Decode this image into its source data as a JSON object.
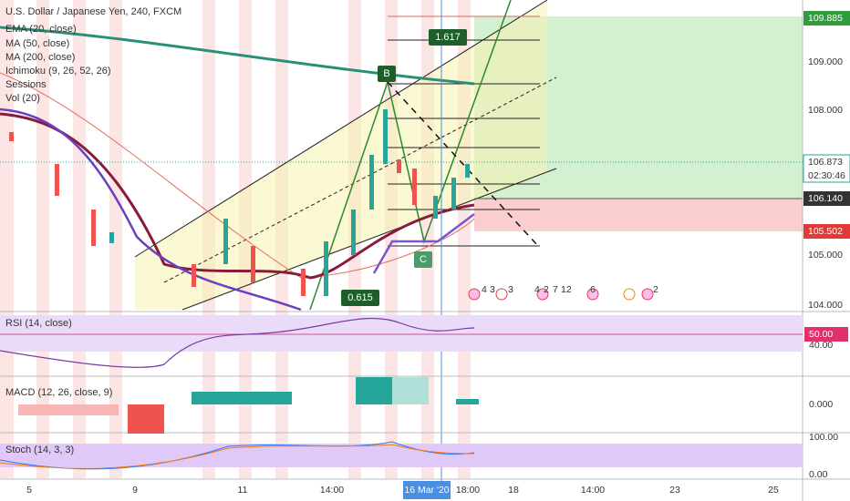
{
  "header": {
    "title": "U.S. Dollar / Japanese Yen, 240, FXCM"
  },
  "indicators": [
    "EMA (20, close)",
    "MA (50, close)",
    "MA (200, close)",
    "Ichimoku (9, 26, 52, 26)",
    "Sessions",
    "Vol (20)"
  ],
  "price_axis": {
    "target": "109.885",
    "p109": "109.000",
    "p108": "108.000",
    "last": "106.873",
    "countdown": "02:30:46",
    "entry": "106.140",
    "stop": "105.502",
    "p105": "105.000",
    "p104": "104.000"
  },
  "drawing": {
    "fib_top": "1.617",
    "fib_bottom": "0.615",
    "point_b": "B",
    "point_c": "C"
  },
  "events": [
    "4",
    "3",
    "3",
    "4",
    "2",
    "7",
    "12",
    "6",
    "2"
  ],
  "rsi": {
    "label": "RSI (14, close)",
    "level": "50.00",
    "axis": "40.00"
  },
  "macd": {
    "label": "MACD (12, 26, close, 9)",
    "axis": "0.000"
  },
  "stoch": {
    "label": "Stoch (14, 3, 3)",
    "top": "100.00",
    "bottom": "0.00"
  },
  "time_axis": [
    "5",
    "9",
    "11",
    "14:00",
    "16 Mar '20",
    "18:00",
    "18",
    "14:00",
    "23",
    "25"
  ]
}
